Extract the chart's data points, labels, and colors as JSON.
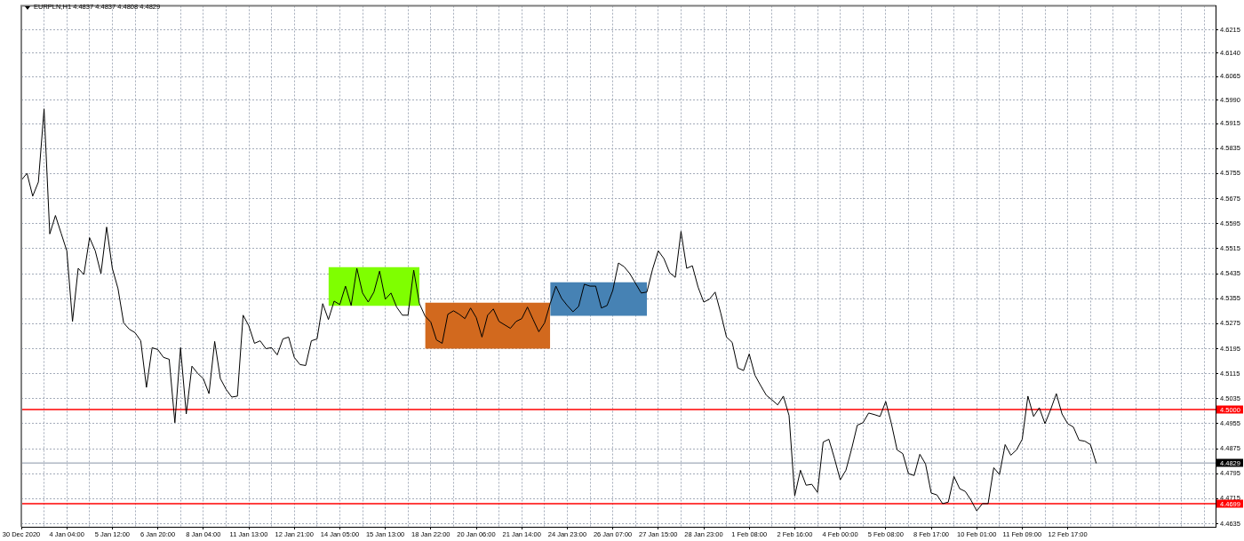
{
  "chart_data": {
    "type": "line",
    "title": "EURPLN,H1 4.4837 4.4837 4.4808 4.4829",
    "categories": [
      "30 Dec 2020",
      null,
      null,
      null,
      null,
      null,
      null,
      null,
      "4 Jan 04:00",
      null,
      null,
      null,
      null,
      null,
      null,
      null,
      "5 Jan 12:00",
      null,
      null,
      null,
      null,
      null,
      null,
      null,
      "6 Jan 20:00",
      null,
      null,
      null,
      null,
      null,
      null,
      null,
      "8 Jan 04:00",
      null,
      null,
      null,
      null,
      null,
      null,
      null,
      "11 Jan 13:00",
      null,
      null,
      null,
      null,
      null,
      null,
      null,
      "12 Jan 21:00",
      null,
      null,
      null,
      null,
      null,
      null,
      null,
      "14 Jan 05:00",
      null,
      null,
      null,
      null,
      null,
      null,
      null,
      "15 Jan 13:00",
      null,
      null,
      null,
      null,
      null,
      null,
      null,
      "18 Jan 22:00",
      null,
      null,
      null,
      null,
      null,
      null,
      null,
      "20 Jan 06:00",
      null,
      null,
      null,
      null,
      null,
      null,
      null,
      "21 Jan 14:00",
      null,
      null,
      null,
      null,
      null,
      null,
      null,
      "24 Jan 23:00",
      null,
      null,
      null,
      null,
      null,
      null,
      null,
      "26 Jan 07:00",
      null,
      null,
      null,
      null,
      null,
      null,
      null,
      "27 Jan 15:00",
      null,
      null,
      null,
      null,
      null,
      null,
      null,
      "28 Jan 23:00",
      null,
      null,
      null,
      null,
      null,
      null,
      null,
      "1 Feb 08:00",
      null,
      null,
      null,
      null,
      null,
      null,
      null,
      "2 Feb 16:00",
      null,
      null,
      null,
      null,
      null,
      null,
      null,
      "4 Feb 00:00",
      null,
      null,
      null,
      null,
      null,
      null,
      null,
      "5 Feb 08:00",
      null,
      null,
      null,
      null,
      null,
      null,
      null,
      "8 Feb 17:00",
      null,
      null,
      null,
      null,
      null,
      null,
      null,
      "10 Feb 01:00",
      null,
      null,
      null,
      null,
      null,
      null,
      null,
      "11 Feb 09:00",
      null,
      null,
      null,
      null,
      null,
      null,
      null,
      "12 Feb 17:00",
      null,
      null,
      null,
      null,
      null,
      null,
      null,
      null,
      null,
      null,
      null,
      null,
      null,
      null,
      null,
      null,
      null,
      null,
      null,
      null,
      null,
      null,
      null,
      null,
      null,
      null
    ],
    "series": [
      {
        "type": "line",
        "color": "#000000",
        "values": [
          4.5734,
          4.5756,
          4.5683,
          4.5728,
          4.5962,
          4.5562,
          4.5621,
          4.5564,
          4.5508,
          4.5282,
          4.5452,
          4.5432,
          4.555,
          4.5508,
          4.5435,
          4.5584,
          4.5452,
          4.5387,
          4.5277,
          4.5257,
          4.5246,
          4.522,
          4.5071,
          4.5198,
          4.5192,
          4.5167,
          4.5161,
          4.4958,
          4.5198,
          4.4986,
          4.5139,
          4.5116,
          4.5099,
          4.5051,
          4.5218,
          4.5099,
          4.5065,
          4.504,
          4.5043,
          4.5302,
          4.5268,
          4.5212,
          4.522,
          4.5195,
          4.5198,
          4.5175,
          4.5226,
          4.5232,
          4.5167,
          4.5144,
          4.5141,
          4.522,
          4.5226,
          4.5339,
          4.5288,
          4.5347,
          4.5336,
          4.5395,
          4.5333,
          4.5452,
          4.5373,
          4.5344,
          4.5376,
          4.5443,
          4.5353,
          4.5373,
          4.5328,
          4.5302,
          4.5302,
          4.5446,
          4.5339,
          4.5299,
          4.528,
          4.5223,
          4.5212,
          4.5305,
          4.5316,
          4.5305,
          4.5291,
          4.5325,
          4.5294,
          4.5232,
          4.5302,
          4.5322,
          4.5282,
          4.5271,
          4.526,
          4.5282,
          4.5291,
          4.5328,
          4.5288,
          4.5249,
          4.5277,
          4.5339,
          4.5395,
          4.5356,
          4.5333,
          4.5313,
          4.533,
          4.5401,
          4.5395,
          4.5395,
          4.5325,
          4.5333,
          4.5381,
          4.5469,
          4.5457,
          4.5435,
          4.5404,
          4.5373,
          4.5376,
          4.5449,
          4.5508,
          4.5483,
          4.5438,
          4.5423,
          4.557,
          4.5452,
          4.546,
          4.5392,
          4.5344,
          4.5353,
          4.5376,
          4.5308,
          4.5232,
          4.5215,
          4.5133,
          4.5125,
          4.5178,
          4.511,
          4.5077,
          4.5046,
          4.5031,
          4.5015,
          4.5043,
          4.4981,
          4.4724,
          4.4806,
          4.4758,
          4.4761,
          4.4735,
          4.4896,
          4.4905,
          4.4843,
          4.4775,
          4.4806,
          4.4874,
          4.495,
          4.4958,
          4.4989,
          4.4984,
          4.4978,
          4.5026,
          4.4955,
          4.4871,
          4.4859,
          4.4795,
          4.4789,
          4.4857,
          4.4826,
          4.4733,
          4.4727,
          4.4699,
          4.4704,
          4.4786,
          4.4747,
          4.4738,
          4.471,
          4.4676,
          4.4699,
          4.4699,
          4.4814,
          4.4792,
          4.4888,
          4.4854,
          4.4871,
          4.4905,
          4.5043,
          4.4978,
          4.5006,
          4.4955,
          4.5,
          4.5051,
          4.4986,
          4.4955,
          4.4944,
          4.4902,
          4.4899,
          4.4888,
          4.4829,
          null,
          null,
          null,
          null,
          null,
          null,
          null,
          null,
          null,
          null,
          null,
          null,
          null,
          null,
          null,
          null,
          null,
          null,
          null,
          null,
          null
        ]
      },
      {
        "type": "area",
        "color": "#7fff00",
        "values": [
          null,
          null,
          null,
          null,
          null,
          null,
          null,
          null,
          null,
          null,
          null,
          null,
          null,
          null,
          null,
          null,
          null,
          null,
          null,
          null,
          null,
          null,
          null,
          null,
          null,
          null,
          null,
          null,
          null,
          null,
          null,
          null,
          null,
          null,
          null,
          null,
          null,
          null,
          null,
          null,
          null,
          null,
          null,
          null,
          null,
          null,
          null,
          null,
          null,
          null,
          null,
          null,
          null,
          null,
          null,
          null,
          null,
          null,
          null,
          null,
          null,
          null,
          null,
          null,
          null,
          null,
          null,
          null,
          null,
          null,
          null,
          null,
          null,
          null,
          null,
          null,
          null,
          null,
          null,
          null,
          null,
          null,
          null,
          null,
          null,
          null,
          null,
          null,
          null,
          null,
          null,
          null,
          null,
          null,
          null,
          null,
          null,
          null,
          null,
          null,
          null,
          null,
          null,
          null,
          null,
          null,
          null,
          null,
          null,
          null,
          null,
          null,
          null,
          null,
          null,
          null,
          null,
          null,
          null,
          null,
          null,
          null,
          null,
          null,
          null,
          null,
          null,
          null,
          null,
          null,
          null,
          null,
          null,
          null,
          null,
          null,
          null,
          null,
          null,
          null,
          null,
          null,
          null,
          null,
          null,
          null,
          null,
          null,
          null,
          null,
          null,
          null,
          null,
          null,
          null,
          null,
          null,
          null,
          null,
          null,
          null,
          null,
          null,
          null,
          null,
          null,
          null,
          null,
          null,
          null,
          null,
          null,
          null,
          null,
          null,
          null,
          null,
          null,
          null,
          null,
          null,
          null,
          null,
          null,
          null,
          null,
          null,
          null,
          null,
          null,
          null,
          null,
          null,
          null,
          null,
          null,
          null,
          null,
          null,
          null,
          null,
          null,
          null,
          null,
          null,
          null,
          null,
          null,
          null,
          null,
          null
        ],
        "lower": [
          null,
          null,
          null,
          null,
          null,
          null,
          null,
          null,
          null,
          null,
          null,
          null,
          null,
          null,
          null,
          null,
          null,
          null,
          null,
          null,
          null,
          null,
          null,
          null,
          null,
          null,
          null,
          null,
          null,
          null,
          null,
          null,
          null,
          null,
          null,
          null,
          null,
          null,
          null,
          null,
          null,
          null,
          null,
          null,
          null,
          null,
          null,
          null,
          null,
          null,
          null,
          null,
          null,
          null,
          4.5332,
          4.5332,
          4.5332,
          4.5332,
          4.5332,
          4.5332,
          4.5332,
          4.5332,
          4.5332,
          4.5332,
          4.5332,
          4.5332,
          4.5332,
          4.5332,
          4.5332,
          4.5332,
          4.5332,
          null,
          null,
          null,
          null,
          null,
          null,
          null,
          null,
          null,
          null,
          null,
          null,
          null,
          null,
          null,
          null,
          null,
          null,
          null,
          null,
          null,
          null,
          null,
          null,
          null,
          null,
          null,
          null,
          null,
          null,
          null,
          null,
          null,
          null,
          null,
          null,
          null,
          null,
          null,
          null,
          null,
          null,
          null,
          null,
          null,
          null,
          null,
          null,
          null,
          null,
          null,
          null,
          null,
          null,
          null,
          null,
          null,
          null,
          null,
          null,
          null,
          null,
          null,
          null,
          null,
          null,
          null,
          null,
          null,
          null,
          null,
          null,
          null,
          null,
          null,
          null,
          null,
          null,
          null,
          null,
          null,
          null,
          null,
          null,
          null,
          null,
          null,
          null,
          null,
          null,
          null,
          null,
          null,
          null,
          null,
          null,
          null,
          null,
          null,
          null,
          null,
          null,
          null,
          null,
          null,
          null,
          null,
          null,
          null,
          null,
          null,
          null,
          null,
          null,
          null,
          null,
          null,
          null,
          null,
          null,
          null,
          null,
          null,
          null,
          null,
          null,
          null,
          null,
          null,
          null,
          null,
          null,
          null,
          null,
          null,
          null,
          null,
          null,
          null,
          null
        ],
        "upper": [
          null,
          null,
          null,
          null,
          null,
          null,
          null,
          null,
          null,
          null,
          null,
          null,
          null,
          null,
          null,
          null,
          null,
          null,
          null,
          null,
          null,
          null,
          null,
          null,
          null,
          null,
          null,
          null,
          null,
          null,
          null,
          null,
          null,
          null,
          null,
          null,
          null,
          null,
          null,
          null,
          null,
          null,
          null,
          null,
          null,
          null,
          null,
          null,
          null,
          null,
          null,
          null,
          null,
          null,
          4.5456,
          4.5456,
          4.5456,
          4.5456,
          4.5456,
          4.5456,
          4.5456,
          4.5456,
          4.5456,
          4.5456,
          4.5456,
          4.5456,
          4.5456,
          4.5456,
          4.5456,
          4.5456,
          4.5456,
          null,
          null,
          null,
          null,
          null,
          null,
          null,
          null,
          null,
          null,
          null,
          null,
          null,
          null,
          null,
          null,
          null,
          null,
          null,
          null,
          null,
          null,
          null,
          null,
          null,
          null,
          null,
          null,
          null,
          null,
          null,
          null,
          null,
          null,
          null,
          null,
          null,
          null,
          null,
          null,
          null,
          null,
          null,
          null,
          null,
          null,
          null,
          null,
          null,
          null,
          null,
          null,
          null,
          null,
          null,
          null,
          null,
          null,
          null,
          null,
          null,
          null,
          null,
          null,
          null,
          null,
          null,
          null,
          null,
          null,
          null,
          null,
          null,
          null,
          null,
          null,
          null,
          null,
          null,
          null,
          null,
          null,
          null,
          null,
          null,
          null,
          null,
          null,
          null,
          null,
          null,
          null,
          null,
          null,
          null,
          null,
          null,
          null,
          null,
          null,
          null,
          null,
          null,
          null,
          null,
          null,
          null,
          null,
          null,
          null,
          null,
          null,
          null,
          null,
          null,
          null,
          null,
          null,
          null,
          null,
          null,
          null,
          null,
          null,
          null,
          null,
          null,
          null,
          null,
          null,
          null,
          null,
          null,
          null,
          null,
          null,
          null,
          null,
          null,
          null
        ]
      },
      {
        "type": "area",
        "color": "#d2691e",
        "values": [
          null,
          null,
          null,
          null,
          null,
          null,
          null,
          null,
          null,
          null,
          null,
          null,
          null,
          null,
          null,
          null,
          null,
          null,
          null,
          null,
          null,
          null,
          null,
          null,
          null,
          null,
          null,
          null,
          null,
          null,
          null,
          null,
          null,
          null,
          null,
          null,
          null,
          null,
          null,
          null,
          null,
          null,
          null,
          null,
          null,
          null,
          null,
          null,
          null,
          null,
          null,
          null,
          null,
          null,
          null,
          null,
          null,
          null,
          null,
          null,
          null,
          null,
          null,
          null,
          null,
          null,
          null,
          null,
          null,
          null,
          null,
          null,
          null,
          null,
          null,
          null,
          null,
          null,
          null,
          null,
          null,
          null,
          null,
          null,
          null,
          null,
          null,
          null,
          null,
          null,
          null,
          null,
          null,
          null,
          null,
          null,
          null,
          null,
          null,
          null,
          null,
          null,
          null,
          null,
          null,
          null,
          null,
          null,
          null,
          null,
          null,
          null,
          null,
          null,
          null,
          null,
          null,
          null,
          null,
          null,
          null,
          null,
          null,
          null,
          null,
          null,
          null,
          null,
          null,
          null,
          null,
          null,
          null,
          null,
          null,
          null,
          null,
          null,
          null,
          null,
          null,
          null,
          null,
          null,
          null,
          null,
          null,
          null,
          null,
          null,
          null,
          null,
          null,
          null,
          null,
          null,
          null,
          null,
          null,
          null,
          null,
          null,
          null,
          null,
          null,
          null,
          null,
          null,
          null,
          null,
          null,
          null,
          null,
          null,
          null,
          null,
          null,
          null,
          null,
          null,
          null,
          null,
          null,
          null,
          null,
          null,
          null,
          null,
          null,
          null,
          null,
          null,
          null,
          null,
          null,
          null,
          null,
          null,
          null,
          null,
          null,
          null,
          null,
          null,
          null,
          null,
          null,
          null,
          null,
          null,
          null
        ],
        "lower": [
          null,
          null,
          null,
          null,
          null,
          null,
          null,
          null,
          null,
          null,
          null,
          null,
          null,
          null,
          null,
          null,
          null,
          null,
          null,
          null,
          null,
          null,
          null,
          null,
          null,
          null,
          null,
          null,
          null,
          null,
          null,
          null,
          null,
          null,
          null,
          null,
          null,
          null,
          null,
          null,
          null,
          null,
          null,
          null,
          null,
          null,
          null,
          null,
          null,
          null,
          null,
          null,
          null,
          null,
          null,
          null,
          null,
          null,
          null,
          null,
          null,
          null,
          null,
          null,
          null,
          null,
          null,
          null,
          null,
          null,
          null,
          4.5195,
          4.5195,
          4.5195,
          4.5195,
          4.5195,
          4.5195,
          4.5195,
          4.5195,
          4.5195,
          4.5195,
          4.5195,
          4.5195,
          4.5195,
          4.5195,
          4.5195,
          4.5195,
          4.5195,
          4.5195,
          4.5195,
          4.5195,
          4.5195,
          4.5195,
          4.5195,
          null,
          null,
          null,
          null,
          null,
          null,
          null,
          null,
          null,
          null,
          null,
          null,
          null,
          null,
          null,
          null,
          null,
          null,
          null,
          null,
          null,
          null,
          null,
          null,
          null,
          null,
          null,
          null,
          null,
          null,
          null,
          null,
          null,
          null,
          null,
          null,
          null,
          null,
          null,
          null,
          null,
          null,
          null,
          null,
          null,
          null,
          null,
          null,
          null,
          null,
          null,
          null,
          null,
          null,
          null,
          null,
          null,
          null,
          null,
          null,
          null,
          null,
          null,
          null,
          null,
          null,
          null,
          null,
          null,
          null,
          null,
          null,
          null,
          null,
          null,
          null,
          null,
          null,
          null,
          null,
          null,
          null,
          null,
          null,
          null,
          null,
          null,
          null,
          null,
          null,
          null,
          null,
          null,
          null,
          null,
          null,
          null,
          null,
          null,
          null,
          null,
          null,
          null,
          null,
          null,
          null,
          null,
          null,
          null,
          null,
          null,
          null,
          null,
          null,
          null,
          null,
          null
        ],
        "upper": [
          null,
          null,
          null,
          null,
          null,
          null,
          null,
          null,
          null,
          null,
          null,
          null,
          null,
          null,
          null,
          null,
          null,
          null,
          null,
          null,
          null,
          null,
          null,
          null,
          null,
          null,
          null,
          null,
          null,
          null,
          null,
          null,
          null,
          null,
          null,
          null,
          null,
          null,
          null,
          null,
          null,
          null,
          null,
          null,
          null,
          null,
          null,
          null,
          null,
          null,
          null,
          null,
          null,
          null,
          null,
          null,
          null,
          null,
          null,
          null,
          null,
          null,
          null,
          null,
          null,
          null,
          null,
          null,
          null,
          null,
          null,
          4.5342,
          4.5342,
          4.5342,
          4.5342,
          4.5342,
          4.5342,
          4.5342,
          4.5342,
          4.5342,
          4.5342,
          4.5342,
          4.5342,
          4.5342,
          4.5342,
          4.5342,
          4.5342,
          4.5342,
          4.5342,
          4.5342,
          4.5342,
          4.5342,
          4.5342,
          4.5342,
          null,
          null,
          null,
          null,
          null,
          null,
          null,
          null,
          null,
          null,
          null,
          null,
          null,
          null,
          null,
          null,
          null,
          null,
          null,
          null,
          null,
          null,
          null,
          null,
          null,
          null,
          null,
          null,
          null,
          null,
          null,
          null,
          null,
          null,
          null,
          null,
          null,
          null,
          null,
          null,
          null,
          null,
          null,
          null,
          null,
          null,
          null,
          null,
          null,
          null,
          null,
          null,
          null,
          null,
          null,
          null,
          null,
          null,
          null,
          null,
          null,
          null,
          null,
          null,
          null,
          null,
          null,
          null,
          null,
          null,
          null,
          null,
          null,
          null,
          null,
          null,
          null,
          null,
          null,
          null,
          null,
          null,
          null,
          null,
          null,
          null,
          null,
          null,
          null,
          null,
          null,
          null,
          null,
          null,
          null,
          null,
          null,
          null,
          null,
          null,
          null,
          null,
          null,
          null,
          null,
          null,
          null,
          null,
          null,
          null,
          null,
          null,
          null,
          null,
          null,
          null,
          null
        ]
      },
      {
        "type": "area",
        "color": "#4682b4",
        "values": [
          null,
          null,
          null,
          null,
          null,
          null,
          null,
          null,
          null,
          null,
          null,
          null,
          null,
          null,
          null,
          null,
          null,
          null,
          null,
          null,
          null,
          null,
          null,
          null,
          null,
          null,
          null,
          null,
          null,
          null,
          null,
          null,
          null,
          null,
          null,
          null,
          null,
          null,
          null,
          null,
          null,
          null,
          null,
          null,
          null,
          null,
          null,
          null,
          null,
          null,
          null,
          null,
          null,
          null,
          null,
          null,
          null,
          null,
          null,
          null,
          null,
          null,
          null,
          null,
          null,
          null,
          null,
          null,
          null,
          null,
          null,
          null,
          null,
          null,
          null,
          null,
          null,
          null,
          null,
          null,
          null,
          null,
          null,
          null,
          null,
          null,
          null,
          null,
          null,
          null,
          null,
          null,
          null,
          null,
          null,
          null,
          null,
          null,
          null,
          null,
          null,
          null,
          null,
          null,
          null,
          null,
          null,
          null,
          null,
          null,
          null,
          null,
          null,
          null,
          null,
          null,
          null,
          null,
          null,
          null,
          null,
          null,
          null,
          null,
          null,
          null,
          null,
          null,
          null,
          null,
          null,
          null,
          null,
          null,
          null,
          null,
          null,
          null,
          null,
          null,
          null,
          null,
          null,
          null,
          null,
          null,
          null,
          null,
          null,
          null,
          null,
          null,
          null,
          null,
          null,
          null,
          null,
          null,
          null,
          null,
          null,
          null,
          null,
          null,
          null,
          null,
          null,
          null,
          null,
          null,
          null,
          null,
          null,
          null,
          null,
          null,
          null,
          null,
          null,
          null,
          null,
          null,
          null,
          null,
          null,
          null,
          null,
          null,
          null,
          null,
          null,
          null,
          null,
          null,
          null,
          null,
          null,
          null,
          null,
          null,
          null,
          null,
          null,
          null,
          null,
          null,
          null,
          null,
          null,
          null,
          null
        ],
        "lower": [
          null,
          null,
          null,
          null,
          null,
          null,
          null,
          null,
          null,
          null,
          null,
          null,
          null,
          null,
          null,
          null,
          null,
          null,
          null,
          null,
          null,
          null,
          null,
          null,
          null,
          null,
          null,
          null,
          null,
          null,
          null,
          null,
          null,
          null,
          null,
          null,
          null,
          null,
          null,
          null,
          null,
          null,
          null,
          null,
          null,
          null,
          null,
          null,
          null,
          null,
          null,
          null,
          null,
          null,
          null,
          null,
          null,
          null,
          null,
          null,
          null,
          null,
          null,
          null,
          null,
          null,
          null,
          null,
          null,
          null,
          null,
          null,
          null,
          null,
          null,
          null,
          null,
          null,
          null,
          null,
          null,
          null,
          null,
          null,
          null,
          null,
          null,
          null,
          null,
          null,
          null,
          null,
          null,
          4.53,
          4.53,
          4.53,
          4.53,
          4.53,
          4.53,
          4.53,
          4.53,
          4.53,
          4.53,
          4.53,
          4.53,
          4.53,
          4.53,
          4.53,
          4.53,
          4.53,
          4.53,
          null,
          null,
          null,
          null,
          null,
          null,
          null,
          null,
          null,
          null,
          null,
          null,
          null,
          null,
          null,
          null,
          null,
          null,
          null,
          null,
          null,
          null,
          null,
          null,
          null,
          null,
          null,
          null,
          null,
          null,
          null,
          null,
          null,
          null,
          null,
          null,
          null,
          null,
          null,
          null,
          null,
          null,
          null,
          null,
          null,
          null,
          null,
          null,
          null,
          null,
          null,
          null,
          null,
          null,
          null,
          null,
          null,
          null,
          null,
          null,
          null,
          null,
          null,
          null,
          null,
          null,
          null,
          null,
          null,
          null,
          null,
          null,
          null,
          null,
          null,
          null,
          null,
          null,
          null,
          null,
          null,
          null,
          null,
          null,
          null,
          null,
          null,
          null,
          null,
          null,
          null,
          null,
          null,
          null,
          null,
          null,
          null,
          null,
          null,
          null
        ],
        "upper": [
          null,
          null,
          null,
          null,
          null,
          null,
          null,
          null,
          null,
          null,
          null,
          null,
          null,
          null,
          null,
          null,
          null,
          null,
          null,
          null,
          null,
          null,
          null,
          null,
          null,
          null,
          null,
          null,
          null,
          null,
          null,
          null,
          null,
          null,
          null,
          null,
          null,
          null,
          null,
          null,
          null,
          null,
          null,
          null,
          null,
          null,
          null,
          null,
          null,
          null,
          null,
          null,
          null,
          null,
          null,
          null,
          null,
          null,
          null,
          null,
          null,
          null,
          null,
          null,
          null,
          null,
          null,
          null,
          null,
          null,
          null,
          null,
          null,
          null,
          null,
          null,
          null,
          null,
          null,
          null,
          null,
          null,
          null,
          null,
          null,
          null,
          null,
          null,
          null,
          null,
          null,
          null,
          null,
          4.5407,
          4.5407,
          4.5407,
          4.5407,
          4.5407,
          4.5407,
          4.5407,
          4.5407,
          4.5407,
          4.5407,
          4.5407,
          4.5407,
          4.5407,
          4.5407,
          4.5407,
          4.5407,
          4.5407,
          4.5407,
          null,
          null,
          null,
          null,
          null,
          null,
          null,
          null,
          null,
          null,
          null,
          null,
          null,
          null,
          null,
          null,
          null,
          null,
          null,
          null,
          null,
          null,
          null,
          null,
          null,
          null,
          null,
          null,
          null,
          null,
          null,
          null,
          null,
          null,
          null,
          null,
          null,
          null,
          null,
          null,
          null,
          null,
          null,
          null,
          null,
          null,
          null,
          null,
          null,
          null,
          null,
          null,
          null,
          null,
          null,
          null,
          null,
          null,
          null,
          null,
          null,
          null,
          null,
          null,
          null,
          null,
          null,
          null,
          null,
          null,
          null,
          null,
          null,
          null,
          null,
          null,
          null,
          null,
          null,
          null,
          null,
          null,
          null,
          null,
          null,
          null,
          null,
          null,
          null,
          null,
          null,
          null,
          null,
          null,
          null,
          null,
          null,
          null,
          null,
          null
        ]
      }
    ],
    "ylim": [
      4.4625,
      4.6292
    ],
    "yticks": [
      4.6215,
      {
        "value": 4.614,
        "label": "4.6140"
      },
      4.6065,
      {
        "value": 4.599,
        "label": "4.5990"
      },
      4.5915,
      4.5835,
      4.5755,
      4.5675,
      4.5595,
      4.5515,
      4.5435,
      4.5355,
      4.5275,
      4.5195,
      4.5115,
      4.5035,
      4.4955,
      4.4875,
      4.4795,
      4.4715,
      4.4635
    ],
    "ref_lines": [
      {
        "axis": "y",
        "value": 4.5,
        "label": "4.5000",
        "color": "#ff0000"
      },
      {
        "axis": "y",
        "value": 4.4699,
        "label": "4.4699",
        "color": "#ff0000"
      },
      {
        "axis": "y",
        "value": 4.4829,
        "label": "4.4829",
        "color": "#b0b8c4"
      }
    ],
    "grid": true,
    "legend": false,
    "marker": "none"
  }
}
